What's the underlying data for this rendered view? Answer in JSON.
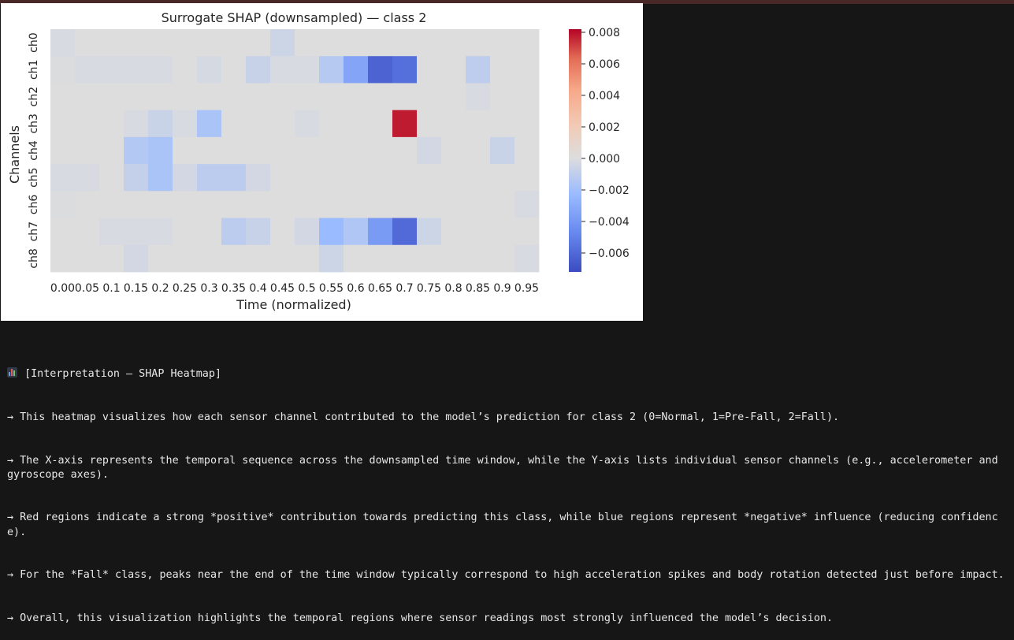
{
  "colors": {
    "page_background": "#161616",
    "figure_background": "#ffffff",
    "text_output": "#e8e8e8",
    "cmap_low": "#3b4cc0",
    "cmap_mid": "#dddddd",
    "cmap_high": "#b40426"
  },
  "chart_data": {
    "type": "heatmap",
    "title": "Surrogate SHAP (downsampled) — class 2",
    "xlabel": "Time (normalized)",
    "ylabel": "Channels",
    "x_tick_labels": [
      "0.00",
      "0.05",
      "0.1",
      "0.15",
      "0.2",
      "0.25",
      "0.3",
      "0.35",
      "0.4",
      "0.45",
      "0.5",
      "0.55",
      "0.6",
      "0.65",
      "0.7",
      "0.75",
      "0.8",
      "0.85",
      "0.9",
      "0.95"
    ],
    "y_tick_labels": [
      "ch0",
      "ch1",
      "ch2",
      "ch3",
      "ch4",
      "ch5",
      "ch6",
      "ch7",
      "ch8"
    ],
    "vmin": -0.0072,
    "vmax": 0.0082,
    "colorbar_ticks": [
      {
        "value": 0.008,
        "label": "0.008"
      },
      {
        "value": 0.006,
        "label": "0.006"
      },
      {
        "value": 0.004,
        "label": "0.004"
      },
      {
        "value": 0.002,
        "label": "0.002"
      },
      {
        "value": 0.0,
        "label": "0.000"
      },
      {
        "value": -0.002,
        "label": "−0.002"
      },
      {
        "value": -0.004,
        "label": "−0.004"
      },
      {
        "value": -0.006,
        "label": "−0.006"
      }
    ],
    "grid": false,
    "colormap": "coolwarm",
    "values": [
      [
        -0.0002,
        0.0,
        0.0,
        0.0,
        0.0,
        0.0,
        0.0,
        0.0,
        0.0,
        -0.0006,
        0.0,
        0.0,
        0.0,
        0.0,
        0.0,
        0.0,
        0.0,
        0.0,
        0.0,
        0.0
      ],
      [
        -0.0001,
        -0.0002,
        -0.0002,
        -0.0002,
        -0.0002,
        0.0,
        -0.0003,
        0.0,
        -0.0008,
        -0.0002,
        -0.0002,
        -0.0014,
        -0.0035,
        -0.0063,
        -0.0058,
        0.0,
        0.0,
        -0.0011,
        0.0,
        0.0
      ],
      [
        0.0,
        0.0,
        0.0,
        0.0,
        0.0,
        0.0,
        0.0,
        0.0,
        0.0,
        0.0,
        0.0,
        0.0,
        0.0,
        0.0,
        0.0,
        0.0,
        0.0,
        -0.0002,
        0.0,
        0.0
      ],
      [
        0.0,
        0.0,
        0.0,
        -0.0002,
        -0.0007,
        -0.0002,
        -0.0018,
        0.0,
        0.0,
        0.0,
        -0.0002,
        0.0,
        0.0,
        0.0,
        0.0078,
        0.0,
        0.0,
        0.0,
        0.0,
        0.0
      ],
      [
        0.0,
        0.0,
        0.0,
        -0.0015,
        -0.0018,
        0.0,
        0.0,
        0.0,
        0.0,
        0.0,
        0.0,
        0.0,
        0.0,
        0.0,
        0.0,
        -0.0004,
        0.0,
        0.0,
        -0.0007,
        0.0
      ],
      [
        -0.0002,
        -0.0002,
        0.0,
        -0.0009,
        -0.0018,
        -0.0004,
        -0.0012,
        -0.0012,
        -0.0004,
        0.0,
        0.0,
        0.0,
        0.0,
        0.0,
        0.0,
        0.0,
        0.0,
        0.0,
        0.0,
        0.0
      ],
      [
        -0.0001,
        0.0,
        0.0,
        0.0,
        0.0,
        0.0,
        0.0,
        0.0,
        0.0,
        0.0,
        0.0,
        0.0,
        0.0,
        0.0,
        0.0,
        0.0,
        0.0,
        0.0,
        0.0,
        -0.0002
      ],
      [
        0.0,
        0.0,
        -0.0002,
        -0.0002,
        -0.0002,
        0.0,
        0.0,
        -0.0012,
        -0.0008,
        0.0,
        -0.0004,
        -0.0024,
        -0.0016,
        -0.0039,
        -0.006,
        -0.0006,
        0.0,
        0.0,
        0.0,
        0.0
      ],
      [
        0.0,
        0.0,
        0.0,
        -0.0004,
        0.0,
        0.0,
        0.0,
        0.0,
        0.0,
        0.0,
        0.0,
        -0.0006,
        0.0,
        0.0,
        0.0,
        0.0,
        0.0,
        0.0,
        0.0,
        -0.0002
      ]
    ]
  },
  "output": {
    "icon": "bar-chart-emoji-icon",
    "lines": [
      "[Interpretation — SHAP Heatmap]",
      "→ This heatmap visualizes how each sensor channel contributed to the model’s prediction for class 2 (0=Normal, 1=Pre-Fall, 2=Fall).",
      "→ The X-axis represents the temporal sequence across the downsampled time window, while the Y-axis lists individual sensor channels (e.g., accelerometer and gyroscope axes).",
      "→ Red regions indicate a strong *positive* contribution towards predicting this class, while blue regions represent *negative* influence (reducing confidence).",
      "→ For the *Fall* class, peaks near the end of the time window typically correspond to high acceleration spikes and body rotation detected just before impact.",
      "→ Overall, this visualization highlights the temporal regions where sensor readings most strongly influenced the model’s decision."
    ]
  }
}
